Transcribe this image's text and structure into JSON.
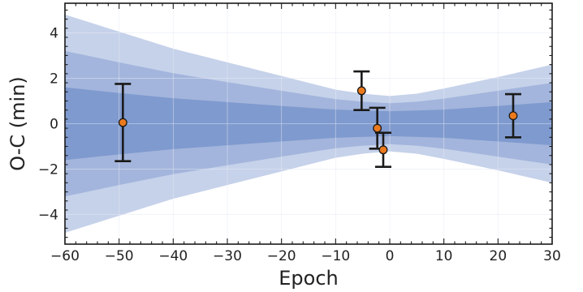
{
  "chart_data": {
    "type": "scatter",
    "xlabel": "Epoch",
    "ylabel": "O-C (min)",
    "xlim": [
      -60,
      30
    ],
    "ylim": [
      -5.3,
      5.3
    ],
    "xticks": [
      -60,
      -50,
      -40,
      -30,
      -20,
      -10,
      0,
      10,
      20,
      30
    ],
    "xtick_labels": [
      "−60",
      "−50",
      "−40",
      "−30",
      "−20",
      "−10",
      "0",
      "10",
      "20",
      "30"
    ],
    "yticks": [
      -4,
      -2,
      0,
      2,
      4
    ],
    "ytick_labels": [
      "−4",
      "−2",
      "0",
      "2",
      "4"
    ],
    "grid": true,
    "bands_half_width_at": {
      "x": [
        -60,
        -50,
        -40,
        -30,
        -20,
        -10,
        -5,
        0,
        5,
        10,
        20,
        30
      ],
      "sigma1": [
        1.6,
        1.35,
        1.12,
        0.95,
        0.78,
        0.62,
        0.58,
        0.55,
        0.58,
        0.62,
        0.78,
        0.95
      ],
      "sigma2": [
        3.2,
        2.7,
        2.22,
        1.83,
        1.45,
        1.08,
        0.97,
        0.9,
        0.97,
        1.1,
        1.45,
        1.8
      ],
      "sigma3": [
        4.8,
        4.05,
        3.3,
        2.7,
        2.1,
        1.5,
        1.32,
        1.22,
        1.32,
        1.55,
        2.05,
        2.6
      ]
    },
    "points": [
      {
        "x": -49.3,
        "y": 0.05,
        "err": 1.7
      },
      {
        "x": -5.2,
        "y": 1.45,
        "err": 0.85
      },
      {
        "x": -2.3,
        "y": -0.2,
        "err": 0.9
      },
      {
        "x": -1.2,
        "y": -1.15,
        "err": 0.75
      },
      {
        "x": 22.8,
        "y": 0.35,
        "err": 0.95
      }
    ],
    "colors": {
      "sigma1": "#7f9ace",
      "sigma2": "#a3b5dc",
      "sigma3": "#c6d2ea",
      "marker_fill": "#ec7a1d",
      "marker_edge": "#1a1a1a",
      "errorbar": "#1a1a1a",
      "grid": "#e4e9f4"
    }
  }
}
